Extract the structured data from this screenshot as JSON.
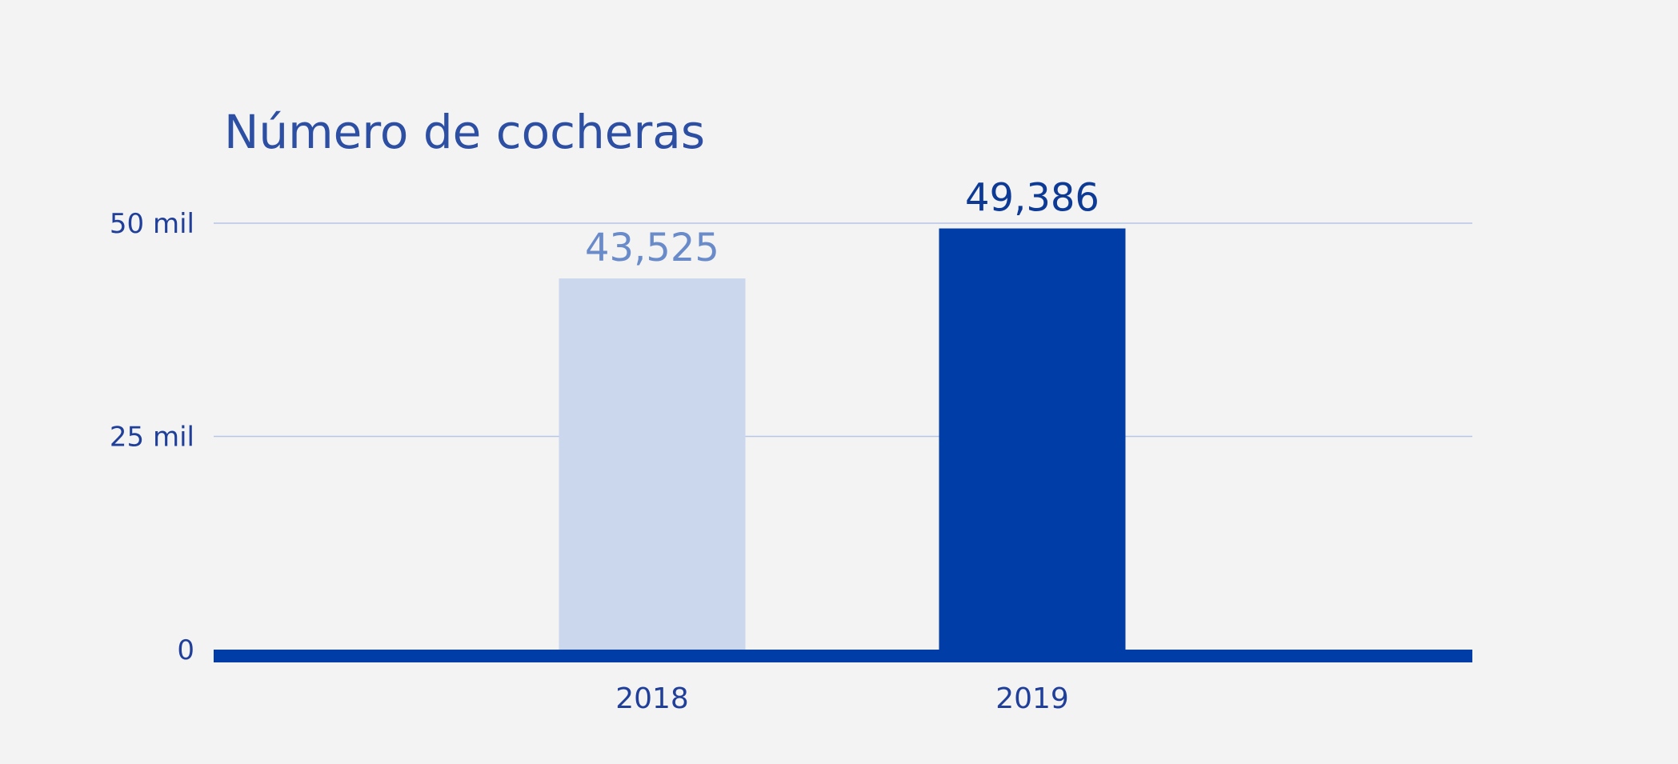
{
  "chart_data": {
    "type": "bar",
    "title": "Número de cocheras",
    "xlabel": "",
    "ylabel": "",
    "categories": [
      "2018",
      "2019"
    ],
    "values": [
      43525,
      49386
    ],
    "data_labels": [
      "43,525",
      "49,386"
    ],
    "ylim": [
      0,
      50000
    ],
    "yticks": [
      {
        "value": 0,
        "label": "0"
      },
      {
        "value": 25000,
        "label": "25 mil"
      },
      {
        "value": 50000,
        "label": "50 mil"
      }
    ],
    "grid": true,
    "legend": "none",
    "bar_colors": [
      "#cbd7ed",
      "#003da6"
    ],
    "label_colors": [
      "#6a8bc9",
      "#0d3a94"
    ]
  },
  "colors": {
    "background": "#f3f3f3",
    "gridline": "#b7c6e6",
    "baseline": "#003da6",
    "title": "#2d4fa3",
    "axis_text": "#1f3f9a"
  }
}
